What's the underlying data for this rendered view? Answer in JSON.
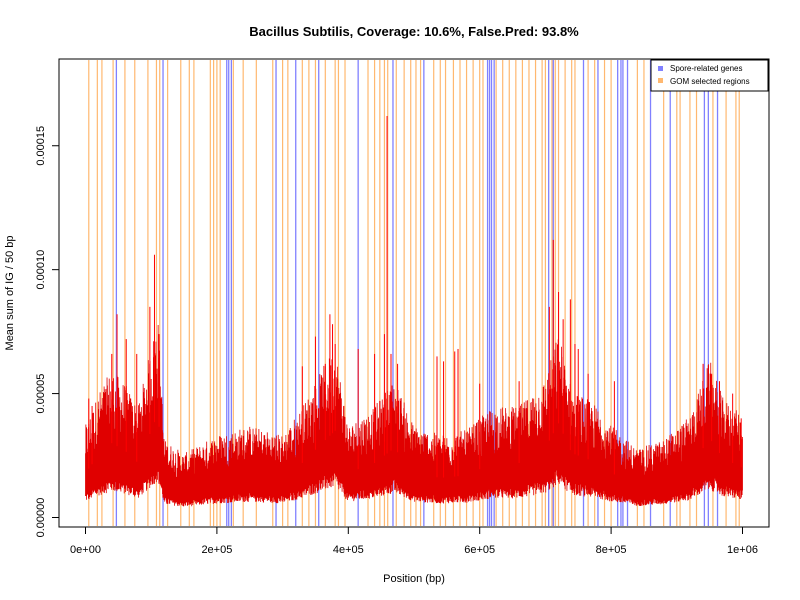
{
  "chart_data": {
    "type": "line",
    "title": "Bacillus Subtilis, Coverage: 10.6%, False.Pred: 93.8%",
    "xlabel": "Position (bp)",
    "ylabel": "Mean sum of IG / 50 bp",
    "xlim": [
      0,
      1000000
    ],
    "ylim": [
      0,
      0.000185
    ],
    "x_ticks": [
      {
        "value": 0,
        "label": "0e+00"
      },
      {
        "value": 200000,
        "label": "2e+05"
      },
      {
        "value": 400000,
        "label": "4e+05"
      },
      {
        "value": 600000,
        "label": "6e+05"
      },
      {
        "value": 800000,
        "label": "8e+05"
      },
      {
        "value": 1000000,
        "label": "1e+06"
      }
    ],
    "y_ticks": [
      {
        "value": 0,
        "label": "0.00000"
      },
      {
        "value": 5e-05,
        "label": "0.00005"
      },
      {
        "value": 0.0001,
        "label": "0.00010"
      },
      {
        "value": 0.00015,
        "label": "0.00015"
      }
    ],
    "grid": false,
    "legend": {
      "placement": "top-right",
      "entries": [
        {
          "label": "Spore-related genes",
          "color": "#8080ff"
        },
        {
          "label": "GOM selected regions",
          "color": "#ffb870"
        }
      ]
    },
    "series_color": "#ff0000",
    "spore_related_genes": [
      47000,
      118000,
      215000,
      218000,
      222000,
      290000,
      320000,
      355000,
      415000,
      468000,
      515000,
      612000,
      615000,
      618000,
      622000,
      705000,
      712000,
      758000,
      780000,
      810000,
      815000,
      818000,
      825000,
      860000,
      890000,
      942000,
      948000,
      962000
    ],
    "gom_selected_regions": [
      5000,
      18000,
      25000,
      42000,
      60000,
      75000,
      95000,
      108000,
      113000,
      125000,
      145000,
      158000,
      165000,
      190000,
      195000,
      200000,
      205000,
      225000,
      240000,
      260000,
      285000,
      300000,
      308000,
      330000,
      340000,
      350000,
      365000,
      380000,
      385000,
      395000,
      430000,
      440000,
      448000,
      455000,
      460000,
      473000,
      485000,
      495000,
      503000,
      510000,
      530000,
      540000,
      548000,
      560000,
      570000,
      580000,
      590000,
      600000,
      605000,
      625000,
      635000,
      645000,
      655000,
      665000,
      675000,
      685000,
      695000,
      700000,
      710000,
      715000,
      720000,
      730000,
      740000,
      745000,
      765000,
      775000,
      790000,
      800000,
      840000,
      850000,
      880000,
      900000,
      905000,
      920000,
      930000,
      955000,
      975000,
      990000,
      995000
    ],
    "profile_knots": [
      [
        0,
        1.8e-05
      ],
      [
        20000,
        2.5e-05
      ],
      [
        40000,
        3e-05
      ],
      [
        60000,
        2.7e-05
      ],
      [
        80000,
        2.2e-05
      ],
      [
        100000,
        3.5e-05
      ],
      [
        110000,
        4.2e-05
      ],
      [
        120000,
        1.5e-05
      ],
      [
        150000,
        1.2e-05
      ],
      [
        200000,
        1.6e-05
      ],
      [
        250000,
        1.8e-05
      ],
      [
        300000,
        1.6e-05
      ],
      [
        330000,
        2.2e-05
      ],
      [
        360000,
        3e-05
      ],
      [
        380000,
        3.5e-05
      ],
      [
        400000,
        1.8e-05
      ],
      [
        440000,
        2.2e-05
      ],
      [
        470000,
        2.8e-05
      ],
      [
        500000,
        1.8e-05
      ],
      [
        540000,
        1.6e-05
      ],
      [
        580000,
        1.7e-05
      ],
      [
        620000,
        2.2e-05
      ],
      [
        660000,
        2.2e-05
      ],
      [
        700000,
        2.8e-05
      ],
      [
        720000,
        3.8e-05
      ],
      [
        740000,
        2.6e-05
      ],
      [
        780000,
        2.2e-05
      ],
      [
        800000,
        1.8e-05
      ],
      [
        840000,
        1.3e-05
      ],
      [
        880000,
        1.5e-05
      ],
      [
        920000,
        2e-05
      ],
      [
        950000,
        3.2e-05
      ],
      [
        970000,
        2.4e-05
      ],
      [
        1000000,
        2e-05
      ]
    ],
    "peaks": [
      [
        5000,
        4.8e-05
      ],
      [
        10000,
        4.5e-05
      ],
      [
        40000,
        6.6e-05
      ],
      [
        48000,
        8.2e-05
      ],
      [
        62000,
        7.2e-05
      ],
      [
        78000,
        6.6e-05
      ],
      [
        98000,
        8.5e-05
      ],
      [
        105000,
        0.000106
      ],
      [
        112000,
        7.4e-05
      ],
      [
        330000,
        6.1e-05
      ],
      [
        350000,
        7.3e-05
      ],
      [
        365000,
        6.2e-05
      ],
      [
        372000,
        8.2e-05
      ],
      [
        376000,
        7.8e-05
      ],
      [
        380000,
        7e-05
      ],
      [
        415000,
        6.8e-05
      ],
      [
        440000,
        6.6e-05
      ],
      [
        455000,
        7.4e-05
      ],
      [
        459000,
        0.000162
      ],
      [
        465000,
        6.6e-05
      ],
      [
        475000,
        6.2e-05
      ],
      [
        535000,
        6.5e-05
      ],
      [
        545000,
        6.3e-05
      ],
      [
        562000,
        6.7e-05
      ],
      [
        567000,
        6.8e-05
      ],
      [
        600000,
        5.4e-05
      ],
      [
        660000,
        5.5e-05
      ],
      [
        706000,
        8.5e-05
      ],
      [
        712000,
        0.000112
      ],
      [
        720000,
        9.1e-05
      ],
      [
        727000,
        8e-05
      ],
      [
        738000,
        8.8e-05
      ],
      [
        745000,
        7e-05
      ],
      [
        750000,
        6.8e-05
      ],
      [
        765000,
        5.8e-05
      ],
      [
        805000,
        5.5e-05
      ],
      [
        940000,
        6.2e-05
      ],
      [
        953000,
        5.8e-05
      ],
      [
        965000,
        5.5e-05
      ],
      [
        985000,
        5e-05
      ],
      [
        998000,
        4e-05
      ]
    ]
  }
}
